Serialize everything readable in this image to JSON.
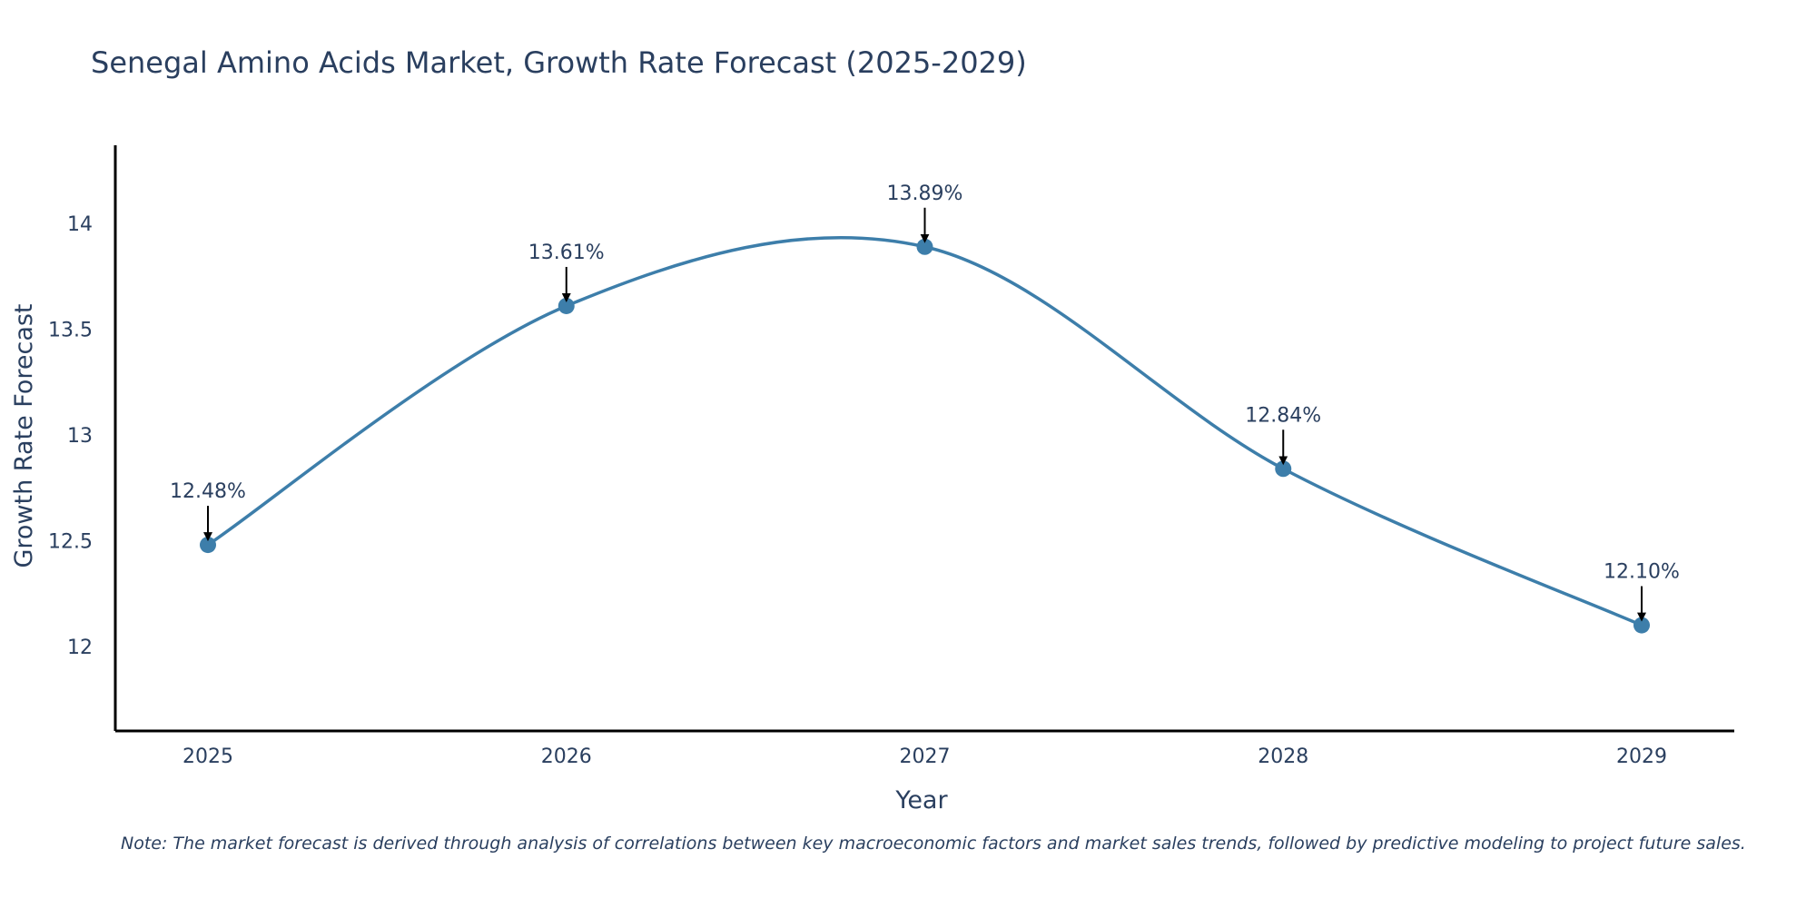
{
  "chart_data": {
    "type": "line",
    "title": "Senegal Amino Acids Market, Growth Rate Forecast (2025-2029)",
    "xlabel": "Year",
    "ylabel": "Growth Rate Forecast",
    "categories": [
      "2025",
      "2026",
      "2027",
      "2028",
      "2029"
    ],
    "values": [
      12.48,
      13.61,
      13.89,
      12.84,
      12.1
    ],
    "data_labels": [
      "12.48%",
      "13.61%",
      "13.89%",
      "12.84%",
      "12.10%"
    ],
    "yticks": [
      12,
      12.5,
      13,
      13.5,
      14
    ],
    "ytick_labels": [
      "12",
      "12.5",
      "13",
      "13.5",
      "14"
    ],
    "ylim": [
      11.6,
      14.37
    ],
    "line_shape": "spline",
    "grid": false,
    "colors": {
      "line": "#3d7eaa",
      "marker": "#3d7eaa",
      "arrow": "#000000",
      "axis": "#000000"
    }
  },
  "note": "Note: The market forecast is derived through analysis of correlations between key macroeconomic factors and market sales trends, followed by predictive modeling to project future sales."
}
